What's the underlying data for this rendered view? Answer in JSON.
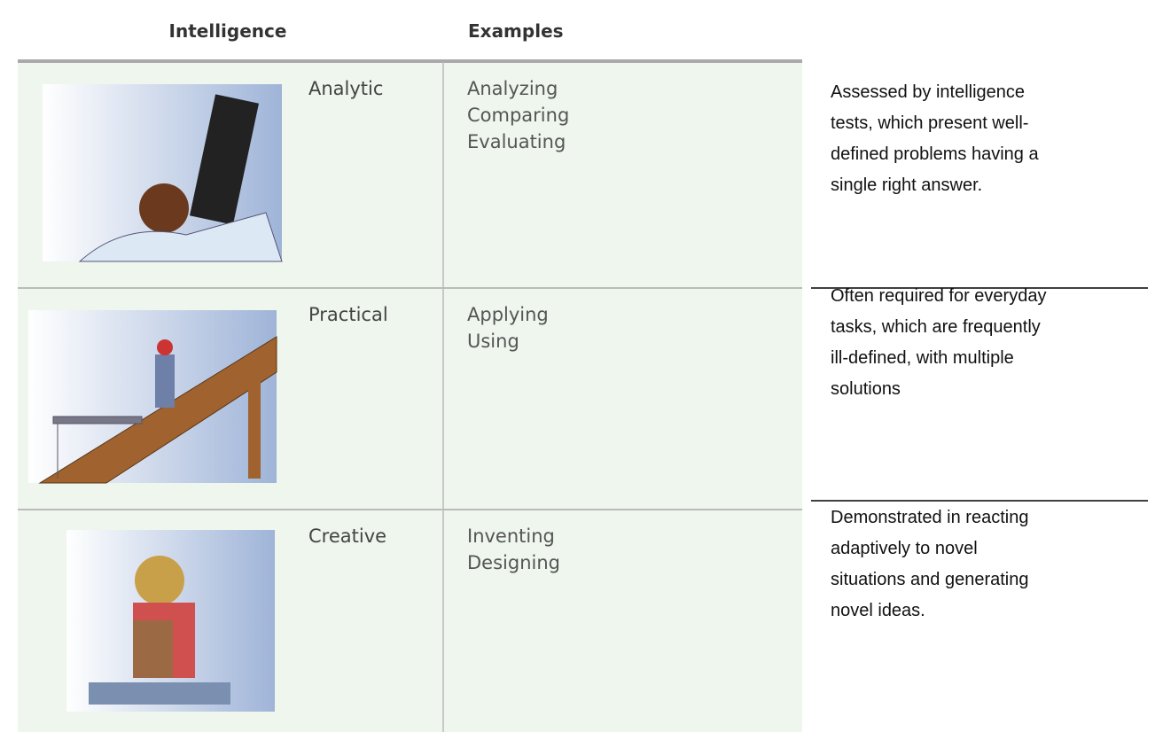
{
  "header": {
    "intelligence": "Intelligence",
    "examples": "Examples"
  },
  "rows": [
    {
      "name": "Analytic",
      "examples": [
        "Analyzing",
        "Comparing",
        "Evaluating"
      ],
      "description": [
        "Assessed by intelligence",
        "tests, which present well-",
        "defined problems having a",
        "single right answer."
      ]
    },
    {
      "name": "Practical",
      "examples": [
        "Applying",
        "Using"
      ],
      "description": [
        "Often required for everyday",
        "tasks, which are frequently",
        "ill-defined, with multiple",
        "solutions"
      ]
    },
    {
      "name": "Creative",
      "examples": [
        "Inventing",
        "Designing"
      ],
      "description": [
        "Demonstrated in reacting",
        "adaptively to novel",
        "situations and generating",
        "novel ideas."
      ]
    }
  ]
}
